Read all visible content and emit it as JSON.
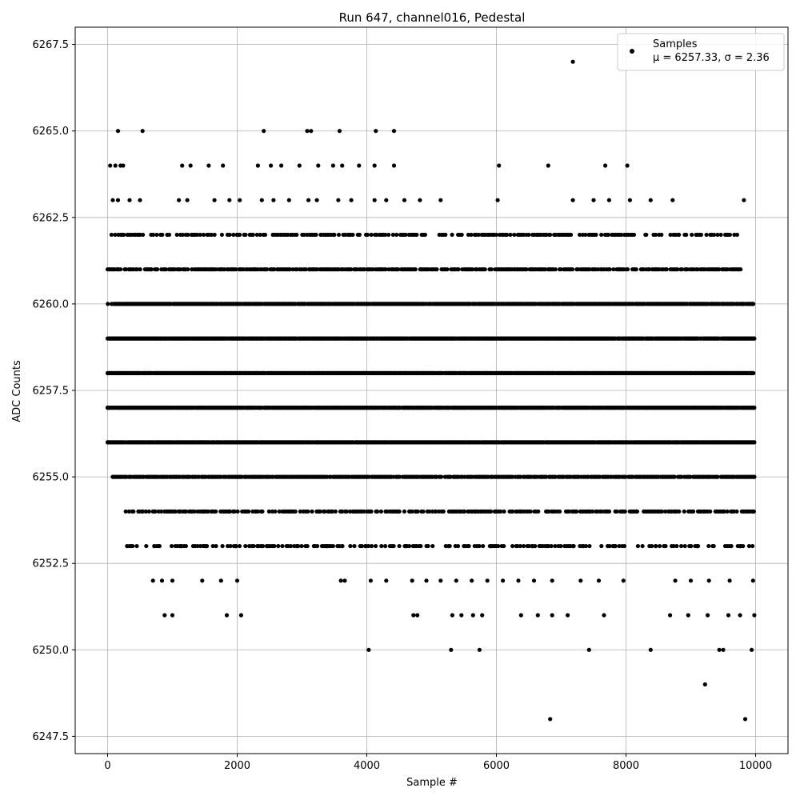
{
  "chart_data": {
    "type": "scatter",
    "title": "Run 647, channel016, Pedestal",
    "xlabel": "Sample #",
    "ylabel": "ADC Counts",
    "xlim": [
      -500,
      10500
    ],
    "ylim": [
      6247.0,
      6268.0
    ],
    "xticks": [
      0,
      2000,
      4000,
      6000,
      8000,
      10000
    ],
    "yticks": [
      6247.5,
      6250.0,
      6252.5,
      6255.0,
      6257.5,
      6260.0,
      6262.5,
      6265.0,
      6267.5
    ],
    "xtick_labels": [
      "0",
      "2000",
      "4000",
      "6000",
      "8000",
      "10000"
    ],
    "ytick_labels": [
      "6247.5",
      "6250.0",
      "6252.5",
      "6255.0",
      "6257.5",
      "6260.0",
      "6262.5",
      "6265.0",
      "6267.5"
    ],
    "grid": true,
    "legend": {
      "position": "top-right",
      "entries": [
        "Samples",
        "μ = 6257.33, σ = 2.36"
      ]
    },
    "marker_color": "#000000",
    "series": [
      {
        "name": "Samples",
        "points": [
          [
            7180,
            6267
          ],
          [
            6830,
            6248
          ],
          [
            9840,
            6248
          ],
          [
            9220,
            6249
          ],
          [
            160,
            6265
          ],
          [
            540,
            6265
          ],
          [
            2410,
            6265
          ],
          [
            3080,
            6265
          ],
          [
            3140,
            6265
          ],
          [
            3580,
            6265
          ],
          [
            4140,
            6265
          ],
          [
            4420,
            6265
          ],
          [
            40,
            6264
          ],
          [
            120,
            6264
          ],
          [
            200,
            6264
          ],
          [
            240,
            6264
          ],
          [
            1150,
            6264
          ],
          [
            1280,
            6264
          ],
          [
            1560,
            6264
          ],
          [
            1780,
            6264
          ],
          [
            2320,
            6264
          ],
          [
            2520,
            6264
          ],
          [
            2680,
            6264
          ],
          [
            2960,
            6264
          ],
          [
            3250,
            6264
          ],
          [
            3480,
            6264
          ],
          [
            3620,
            6264
          ],
          [
            3880,
            6264
          ],
          [
            4120,
            6264
          ],
          [
            4420,
            6264
          ],
          [
            6040,
            6264
          ],
          [
            6800,
            6264
          ],
          [
            7680,
            6264
          ],
          [
            8020,
            6264
          ],
          [
            80,
            6263
          ],
          [
            160,
            6263
          ],
          [
            340,
            6263
          ],
          [
            500,
            6263
          ],
          [
            1100,
            6263
          ],
          [
            1230,
            6263
          ],
          [
            1650,
            6263
          ],
          [
            1880,
            6263
          ],
          [
            2040,
            6263
          ],
          [
            2380,
            6263
          ],
          [
            2560,
            6263
          ],
          [
            2800,
            6263
          ],
          [
            3100,
            6263
          ],
          [
            3230,
            6263
          ],
          [
            3560,
            6263
          ],
          [
            3760,
            6263
          ],
          [
            4120,
            6263
          ],
          [
            4300,
            6263
          ],
          [
            4580,
            6263
          ],
          [
            4820,
            6263
          ],
          [
            5140,
            6263
          ],
          [
            6020,
            6263
          ],
          [
            7180,
            6263
          ],
          [
            7500,
            6263
          ],
          [
            7740,
            6263
          ],
          [
            8060,
            6263
          ],
          [
            8380,
            6263
          ],
          [
            8720,
            6263
          ],
          [
            9820,
            6263
          ],
          [
            20,
            6259
          ],
          [
            9980,
            6259
          ],
          [
            0,
            6257
          ],
          [
            9980,
            6257
          ],
          [
            0,
            6256
          ],
          [
            9980,
            6256
          ],
          [
            9980,
            6255
          ],
          [
            280,
            6254
          ],
          [
            380,
            6254
          ],
          [
            700,
            6254
          ],
          [
            1100,
            6254
          ],
          [
            1480,
            6254
          ],
          [
            1880,
            6254
          ],
          [
            2240,
            6254
          ],
          [
            2700,
            6254
          ],
          [
            3260,
            6254
          ],
          [
            3620,
            6254
          ],
          [
            4000,
            6254
          ],
          [
            4480,
            6254
          ],
          [
            5060,
            6254
          ],
          [
            5680,
            6254
          ],
          [
            6320,
            6254
          ],
          [
            6940,
            6254
          ],
          [
            7560,
            6254
          ],
          [
            8160,
            6254
          ],
          [
            8760,
            6254
          ],
          [
            9380,
            6254
          ],
          [
            9960,
            6254
          ],
          [
            300,
            6253
          ],
          [
            720,
            6253
          ],
          [
            1140,
            6253
          ],
          [
            1520,
            6253
          ],
          [
            1980,
            6253
          ],
          [
            2460,
            6253
          ],
          [
            2920,
            6253
          ],
          [
            3380,
            6253
          ],
          [
            3620,
            6253
          ],
          [
            3980,
            6253
          ],
          [
            4600,
            6253
          ],
          [
            5260,
            6253
          ],
          [
            5900,
            6253
          ],
          [
            6560,
            6253
          ],
          [
            7180,
            6253
          ],
          [
            7820,
            6253
          ],
          [
            8460,
            6253
          ],
          [
            9100,
            6253
          ],
          [
            9760,
            6253
          ],
          [
            700,
            6252
          ],
          [
            840,
            6252
          ],
          [
            1000,
            6252
          ],
          [
            1460,
            6252
          ],
          [
            1750,
            6252
          ],
          [
            2000,
            6252
          ],
          [
            3600,
            6252
          ],
          [
            3660,
            6252
          ],
          [
            4060,
            6252
          ],
          [
            4300,
            6252
          ],
          [
            4700,
            6252
          ],
          [
            4920,
            6252
          ],
          [
            5140,
            6252
          ],
          [
            5380,
            6252
          ],
          [
            5620,
            6252
          ],
          [
            5860,
            6252
          ],
          [
            6100,
            6252
          ],
          [
            6340,
            6252
          ],
          [
            6580,
            6252
          ],
          [
            6860,
            6252
          ],
          [
            7300,
            6252
          ],
          [
            7580,
            6252
          ],
          [
            7960,
            6252
          ],
          [
            8760,
            6252
          ],
          [
            9000,
            6252
          ],
          [
            9280,
            6252
          ],
          [
            9600,
            6252
          ],
          [
            9960,
            6252
          ],
          [
            880,
            6251
          ],
          [
            1000,
            6251
          ],
          [
            1840,
            6251
          ],
          [
            2060,
            6251
          ],
          [
            4720,
            6251
          ],
          [
            4780,
            6251
          ],
          [
            5320,
            6251
          ],
          [
            5460,
            6251
          ],
          [
            5640,
            6251
          ],
          [
            5780,
            6251
          ],
          [
            6380,
            6251
          ],
          [
            6640,
            6251
          ],
          [
            6860,
            6251
          ],
          [
            7100,
            6251
          ],
          [
            7660,
            6251
          ],
          [
            8680,
            6251
          ],
          [
            8960,
            6251
          ],
          [
            9260,
            6251
          ],
          [
            9580,
            6251
          ],
          [
            9760,
            6251
          ],
          [
            9980,
            6251
          ],
          [
            4030,
            6250
          ],
          [
            5300,
            6250
          ],
          [
            5740,
            6250
          ],
          [
            7430,
            6250
          ],
          [
            8380,
            6250
          ],
          [
            9440,
            6250
          ],
          [
            9500,
            6250
          ],
          [
            9940,
            6250
          ]
        ],
        "dense_bands": [
          {
            "y": 6262,
            "x_start": 60,
            "x_end": 9780,
            "step": 28,
            "density": 0.62
          },
          {
            "y": 6261,
            "x_start": 0,
            "x_end": 9780,
            "step": 22,
            "density": 0.78
          },
          {
            "y": 6260,
            "x_start": 0,
            "x_end": 9980,
            "step": 16,
            "density": 0.93
          },
          {
            "y": 6259,
            "x_start": 0,
            "x_end": 9980,
            "step": 14,
            "density": 0.97
          },
          {
            "y": 6258,
            "x_start": 0,
            "x_end": 9980,
            "step": 14,
            "density": 0.97
          },
          {
            "y": 6257,
            "x_start": 0,
            "x_end": 9980,
            "step": 14,
            "density": 0.97
          },
          {
            "y": 6256,
            "x_start": 0,
            "x_end": 9980,
            "step": 14,
            "density": 0.96
          },
          {
            "y": 6255,
            "x_start": 40,
            "x_end": 9980,
            "step": 18,
            "density": 0.86
          },
          {
            "y": 6254,
            "x_start": 280,
            "x_end": 9980,
            "step": 24,
            "density": 0.66
          },
          {
            "y": 6253,
            "x_start": 300,
            "x_end": 9980,
            "step": 30,
            "density": 0.52
          }
        ]
      }
    ]
  }
}
